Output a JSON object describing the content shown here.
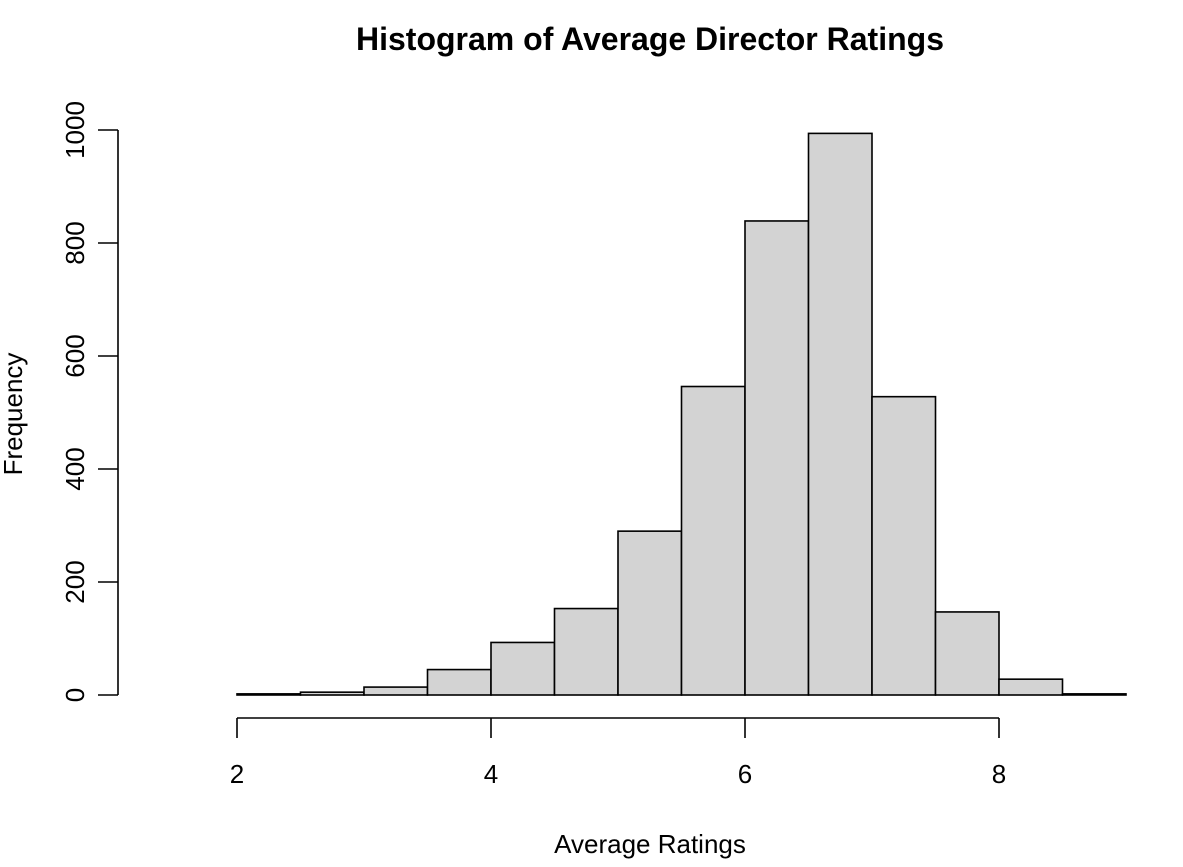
{
  "chart_data": {
    "type": "bar",
    "title": "Histogram of Average Director Ratings",
    "xlabel": "Average Ratings",
    "ylabel": "Frequency",
    "bins": [
      {
        "start": 1.5,
        "end": 2.0,
        "count": 0
      },
      {
        "start": 2.0,
        "end": 2.5,
        "count": 2
      },
      {
        "start": 2.5,
        "end": 3.0,
        "count": 5
      },
      {
        "start": 3.0,
        "end": 3.5,
        "count": 14
      },
      {
        "start": 3.5,
        "end": 4.0,
        "count": 45
      },
      {
        "start": 4.0,
        "end": 4.5,
        "count": 93
      },
      {
        "start": 4.5,
        "end": 5.0,
        "count": 153
      },
      {
        "start": 5.0,
        "end": 5.5,
        "count": 290
      },
      {
        "start": 5.5,
        "end": 6.0,
        "count": 546
      },
      {
        "start": 6.0,
        "end": 6.5,
        "count": 839
      },
      {
        "start": 6.5,
        "end": 7.0,
        "count": 994
      },
      {
        "start": 7.0,
        "end": 7.5,
        "count": 528
      },
      {
        "start": 7.5,
        "end": 8.0,
        "count": 147
      },
      {
        "start": 8.0,
        "end": 8.5,
        "count": 28
      },
      {
        "start": 8.5,
        "end": 9.0,
        "count": 2
      }
    ],
    "xticks": [
      2,
      4,
      6,
      8
    ],
    "yticks": [
      0,
      200,
      400,
      600,
      800,
      1000
    ],
    "xlim": [
      1.5,
      9.0
    ],
    "ylim": [
      0,
      1000
    ],
    "grid": false,
    "colors": {
      "bar_fill": "#d3d3d3",
      "bar_stroke": "#000000"
    }
  }
}
